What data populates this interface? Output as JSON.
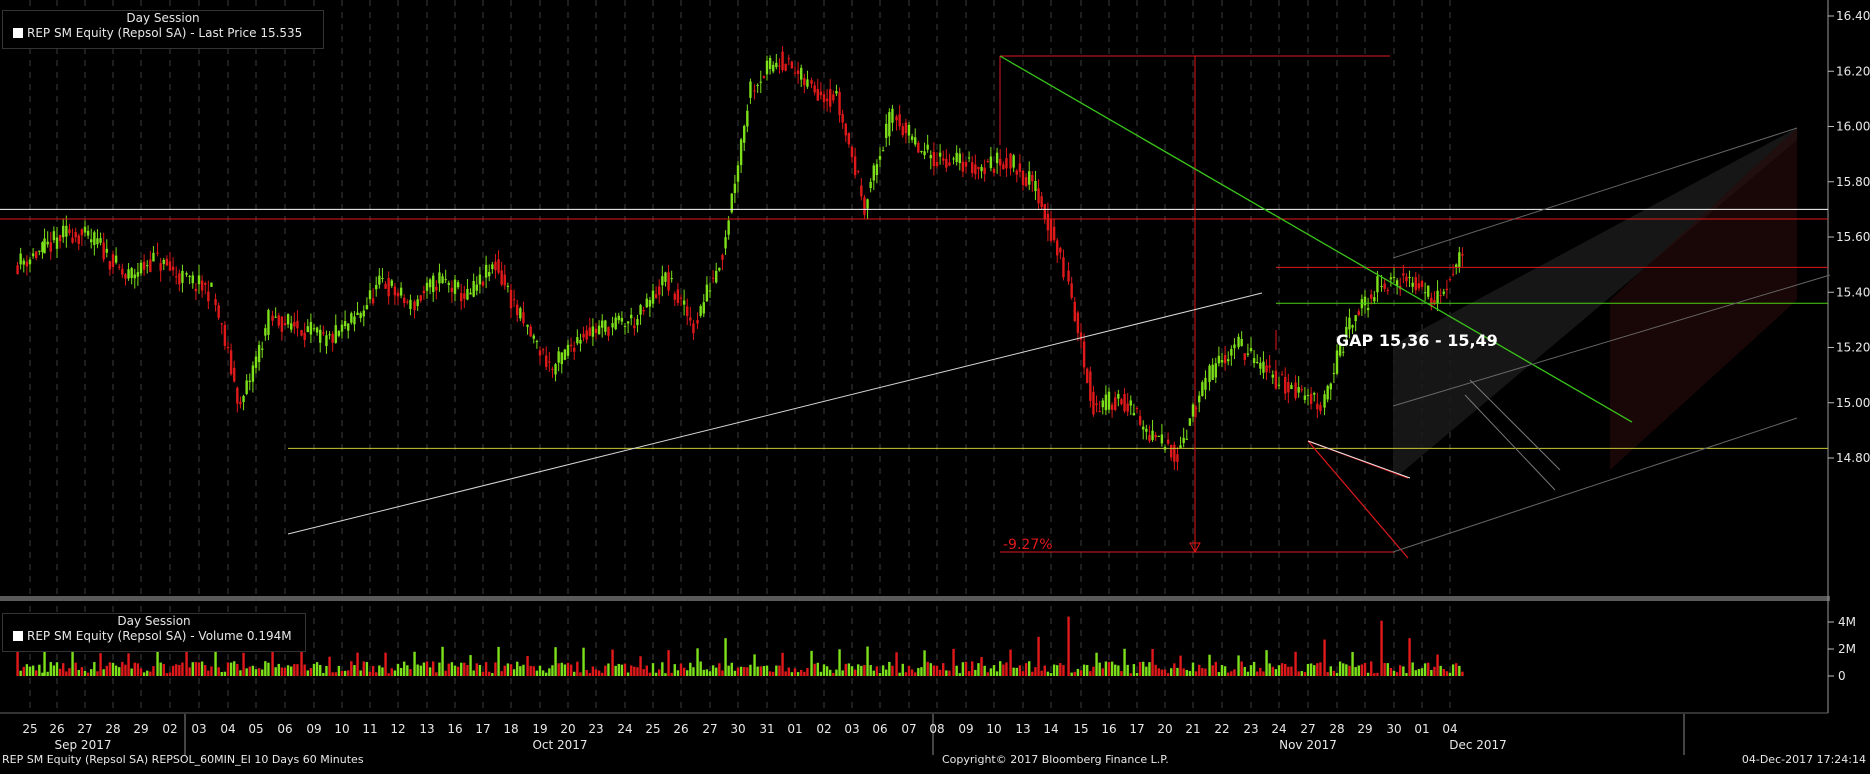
{
  "price_legend": {
    "session": "Day Session",
    "label": "REP SM Equity (Repsol SA) - Last Price 15.535"
  },
  "volume_legend": {
    "session": "Day Session",
    "label": "REP SM Equity (Repsol SA) - Volume 0.194M"
  },
  "footer": {
    "left": "REP SM Equity (Repsol SA) REPSOL_60MIN_EI 10 Days 60 Minutes",
    "center": "Copyright© 2017 Bloomberg Finance L.P.",
    "right": "04-Dec-2017 17:24:14"
  },
  "annotations": {
    "gap": "GAP 15,36 - 15,49",
    "drop": "-9.27%"
  },
  "colors": {
    "up": "#7de01b",
    "down": "#e0191b",
    "text": "#e8e8e8",
    "support": "#c8c832",
    "background": "#000000"
  },
  "chart_data": [
    {
      "type": "candlestick",
      "series": [
        {
          "name": "REP SM Equity (Repsol SA) - Last Price",
          "last": 15.535
        }
      ],
      "y_ticks": [
        "16.40",
        "16.20",
        "16.00",
        "15.80",
        "15.60",
        "15.40",
        "15.20",
        "15.00",
        "14.80"
      ],
      "ylim": [
        14.65,
        16.47
      ],
      "months": [
        "Sep 2017",
        "Oct 2017",
        "Nov 2017",
        "Dec 2017"
      ],
      "days": [
        "25",
        "26",
        "27",
        "28",
        "29",
        "02",
        "03",
        "04",
        "05",
        "06",
        "09",
        "10",
        "11",
        "12",
        "13",
        "16",
        "17",
        "18",
        "19",
        "20",
        "23",
        "24",
        "25",
        "26",
        "27",
        "30",
        "31",
        "01",
        "02",
        "03",
        "06",
        "07",
        "08",
        "09",
        "10",
        "13",
        "14",
        "15",
        "16",
        "17",
        "20",
        "21",
        "22",
        "23",
        "24",
        "27",
        "28",
        "29",
        "30",
        "01",
        "04"
      ],
      "daily_close": [
        15.55,
        15.62,
        15.58,
        15.45,
        15.52,
        15.45,
        15.4,
        14.98,
        15.3,
        15.28,
        15.22,
        15.3,
        15.44,
        15.35,
        15.45,
        15.38,
        15.5,
        15.28,
        15.12,
        15.25,
        15.28,
        15.3,
        15.45,
        15.28,
        15.55,
        16.15,
        16.25,
        16.15,
        16.1,
        15.72,
        16.05,
        15.9,
        15.88,
        15.85,
        15.88,
        15.78,
        15.48,
        14.98,
        15.02,
        14.88,
        14.82,
        15.08,
        15.22,
        15.12,
        15.05,
        15.0,
        15.28,
        15.42,
        15.45,
        15.38,
        15.53
      ],
      "levels": [
        {
          "value": 15.7,
          "color": "#ffffff"
        },
        {
          "value": 15.665,
          "color": "#e0191b"
        },
        {
          "value": 15.49,
          "color": "#e0191b"
        },
        {
          "value": 15.36,
          "color": "#4ad010"
        },
        {
          "value": 14.835,
          "color": "#c8c832"
        }
      ]
    },
    {
      "type": "bar",
      "series": [
        {
          "name": "REP SM Equity (Repsol SA) - Volume",
          "last": "0.194M"
        }
      ],
      "y_ticks": [
        "4M",
        "2M",
        "0"
      ],
      "ylim": [
        0,
        4.5
      ],
      "unit": "M",
      "spikes": [
        {
          "day": "05",
          "value": 3.0
        },
        {
          "day": "30",
          "value": 2.8
        },
        {
          "day": "14",
          "value": 2.9
        },
        {
          "day": "15",
          "value": 4.4
        },
        {
          "day": "28",
          "value": 2.7
        },
        {
          "day": "30",
          "value": 4.1
        },
        {
          "day": "01",
          "value": 2.8
        }
      ]
    }
  ]
}
